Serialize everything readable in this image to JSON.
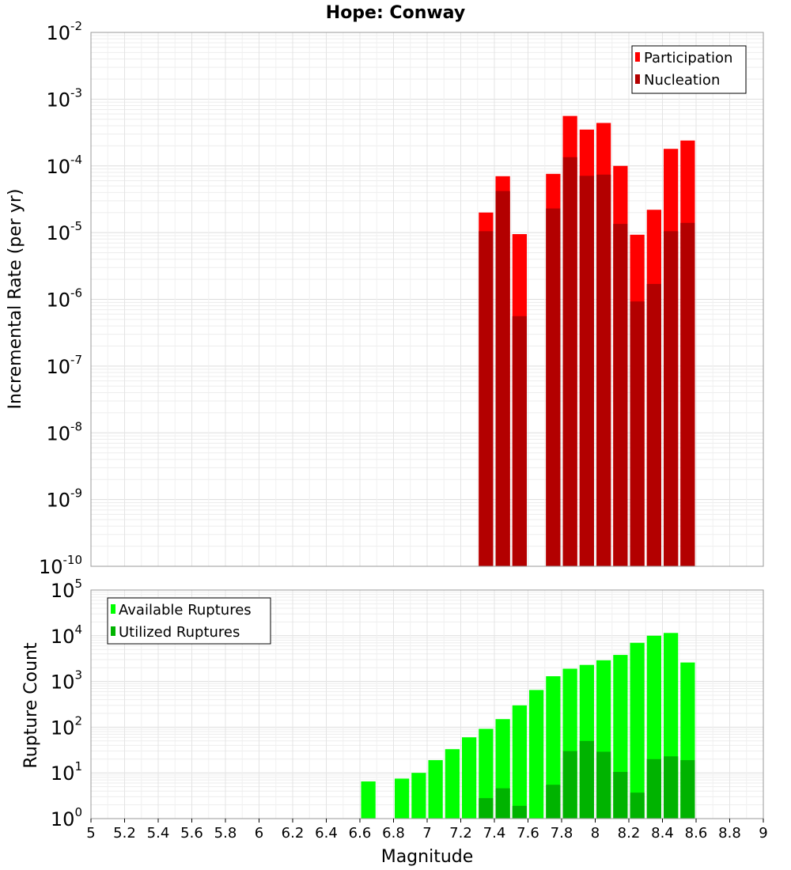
{
  "chart_data": [
    {
      "type": "bar",
      "title": "Hope: Conway",
      "ylabel": "Incremental Rate (per yr)",
      "yscale": "log",
      "ylim_exp": [
        -10,
        -2
      ],
      "xlim": [
        5,
        9
      ],
      "bin_width": 0.1,
      "legend_position": "top-right",
      "colors": {
        "participation": "#ff0000",
        "nucleation": "#b30000"
      },
      "series": [
        {
          "name": "Participation",
          "points": [
            {
              "x": 7.35,
              "y": 2e-05
            },
            {
              "x": 7.45,
              "y": 7e-05
            },
            {
              "x": 7.55,
              "y": 9.5e-06
            },
            {
              "x": 7.75,
              "y": 7.6e-05
            },
            {
              "x": 7.85,
              "y": 0.00056
            },
            {
              "x": 7.95,
              "y": 0.00035
            },
            {
              "x": 8.05,
              "y": 0.00044
            },
            {
              "x": 8.15,
              "y": 0.0001
            },
            {
              "x": 8.25,
              "y": 9.3e-06
            },
            {
              "x": 8.35,
              "y": 2.2e-05
            },
            {
              "x": 8.45,
              "y": 0.00018
            },
            {
              "x": 8.55,
              "y": 0.00024
            }
          ]
        },
        {
          "name": "Nucleation",
          "points": [
            {
              "x": 7.35,
              "y": 1.05e-05
            },
            {
              "x": 7.45,
              "y": 4.2e-05
            },
            {
              "x": 7.55,
              "y": 5.6e-07
            },
            {
              "x": 7.75,
              "y": 2.3e-05
            },
            {
              "x": 7.85,
              "y": 0.000135
            },
            {
              "x": 7.95,
              "y": 7.1e-05
            },
            {
              "x": 8.05,
              "y": 7.4e-05
            },
            {
              "x": 8.15,
              "y": 1.35e-05
            },
            {
              "x": 8.25,
              "y": 9.3e-07
            },
            {
              "x": 8.35,
              "y": 1.7e-06
            },
            {
              "x": 8.45,
              "y": 1.05e-05
            },
            {
              "x": 8.55,
              "y": 1.4e-05
            }
          ]
        }
      ]
    },
    {
      "type": "bar",
      "xlabel": "Magnitude",
      "ylabel": "Rupture Count",
      "yscale": "log",
      "ylim_exp": [
        0,
        5
      ],
      "xlim": [
        5,
        9
      ],
      "bin_width": 0.1,
      "legend_position": "top-left",
      "colors": {
        "available": "#00ff00",
        "utilized": "#00b300"
      },
      "x_ticks": [
        "5",
        "5.2",
        "5.4",
        "5.6",
        "5.8",
        "6",
        "6.2",
        "6.4",
        "6.6",
        "6.8",
        "7",
        "7.2",
        "7.4",
        "7.6",
        "7.8",
        "8",
        "8.2",
        "8.4",
        "8.6",
        "8.8",
        "9"
      ],
      "series": [
        {
          "name": "Available Ruptures",
          "points": [
            {
              "x": 6.65,
              "y": 6.5
            },
            {
              "x": 6.85,
              "y": 7.5
            },
            {
              "x": 6.95,
              "y": 10
            },
            {
              "x": 7.05,
              "y": 19
            },
            {
              "x": 7.15,
              "y": 33
            },
            {
              "x": 7.25,
              "y": 60
            },
            {
              "x": 7.35,
              "y": 92
            },
            {
              "x": 7.45,
              "y": 150
            },
            {
              "x": 7.55,
              "y": 300
            },
            {
              "x": 7.65,
              "y": 650
            },
            {
              "x": 7.75,
              "y": 1300
            },
            {
              "x": 7.85,
              "y": 1900
            },
            {
              "x": 7.95,
              "y": 2300
            },
            {
              "x": 8.05,
              "y": 2900
            },
            {
              "x": 8.15,
              "y": 3800
            },
            {
              "x": 8.25,
              "y": 7000
            },
            {
              "x": 8.35,
              "y": 10000
            },
            {
              "x": 8.45,
              "y": 11500
            },
            {
              "x": 8.55,
              "y": 2600
            }
          ]
        },
        {
          "name": "Utilized Ruptures",
          "points": [
            {
              "x": 7.35,
              "y": 2.8
            },
            {
              "x": 7.45,
              "y": 4.6
            },
            {
              "x": 7.55,
              "y": 1.9
            },
            {
              "x": 7.75,
              "y": 5.5
            },
            {
              "x": 7.85,
              "y": 30
            },
            {
              "x": 7.95,
              "y": 50
            },
            {
              "x": 8.05,
              "y": 29
            },
            {
              "x": 8.15,
              "y": 10.5
            },
            {
              "x": 8.25,
              "y": 3.7
            },
            {
              "x": 8.35,
              "y": 20
            },
            {
              "x": 8.45,
              "y": 23
            },
            {
              "x": 8.55,
              "y": 19
            }
          ]
        }
      ]
    }
  ]
}
